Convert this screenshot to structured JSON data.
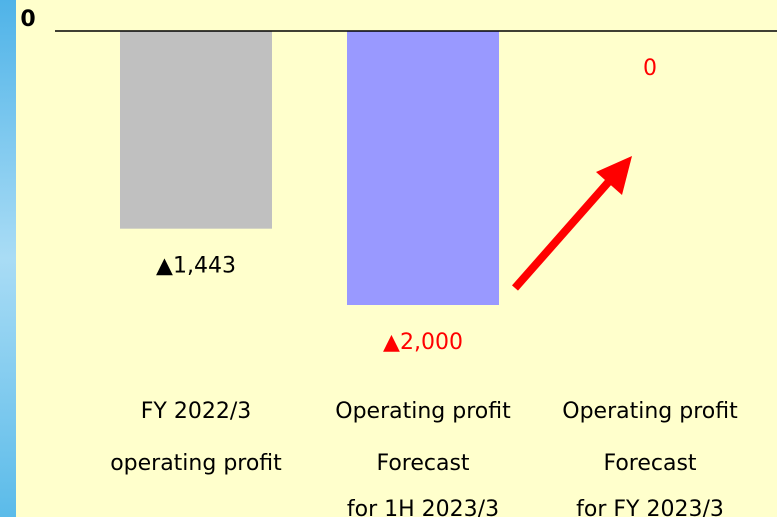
{
  "chart_data": {
    "type": "bar",
    "categories": [
      [
        "FY 2022/3",
        "operating profit"
      ],
      [
        "Operating profit",
        "Forecast",
        "for 1H 2023/3"
      ],
      [
        "Operating profit",
        "Forecast",
        "for FY 2023/3"
      ]
    ],
    "values": [
      -1443,
      -2000,
      0
    ],
    "value_labels": [
      "▲1,443",
      "▲2,000",
      "0"
    ],
    "colors": [
      "#c0c0c0",
      "#9999ff",
      "#9999ff"
    ],
    "label_colors": [
      "#000000",
      "#ff0000",
      "#ff0000"
    ],
    "ylim": [
      -3500,
      0
    ],
    "yticks": [
      0
    ]
  }
}
